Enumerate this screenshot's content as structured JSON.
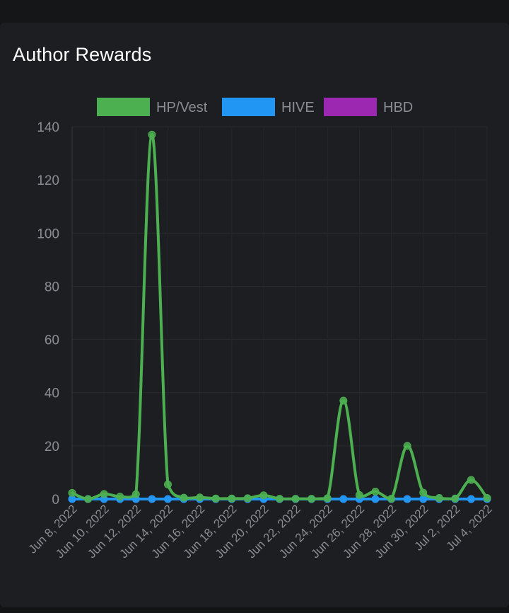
{
  "card": {
    "title": "Author Rewards"
  },
  "chart_data": {
    "type": "line",
    "title": "",
    "xlabel": "",
    "ylabel": "",
    "ylim": [
      0,
      140
    ],
    "yticks": [
      0,
      20,
      40,
      60,
      80,
      100,
      120,
      140
    ],
    "x": [
      "Jun 8, 2022",
      "Jun 9, 2022",
      "Jun 10, 2022",
      "Jun 11, 2022",
      "Jun 12, 2022",
      "Jun 13, 2022",
      "Jun 14, 2022",
      "Jun 15, 2022",
      "Jun 16, 2022",
      "Jun 17, 2022",
      "Jun 18, 2022",
      "Jun 19, 2022",
      "Jun 20, 2022",
      "Jun 21, 2022",
      "Jun 22, 2022",
      "Jun 23, 2022",
      "Jun 24, 2022",
      "Jun 25, 2022",
      "Jun 26, 2022",
      "Jun 27, 2022",
      "Jun 28, 2022",
      "Jun 29, 2022",
      "Jun 30, 2022",
      "Jul 1, 2022",
      "Jul 2, 2022",
      "Jul 3, 2022",
      "Jul 4, 2022"
    ],
    "x_tick_labels": [
      "Jun 8, 2022",
      "Jun 10, 2022",
      "Jun 12, 2022",
      "Jun 14, 2022",
      "Jun 16, 2022",
      "Jun 18, 2022",
      "Jun 20, 2022",
      "Jun 22, 2022",
      "Jun 24, 2022",
      "Jun 26, 2022",
      "Jun 28, 2022",
      "Jun 30, 2022",
      "Jul 2, 2022",
      "Jul 4, 2022"
    ],
    "legend_position": "top",
    "grid": true,
    "series": [
      {
        "name": "HP/Vest",
        "color": "#4caf50",
        "values": [
          2.3,
          0,
          1.9,
          0.9,
          1.8,
          137,
          5.5,
          0.5,
          0.6,
          0.2,
          0.2,
          0.3,
          1.4,
          0.1,
          0.1,
          0.1,
          0.3,
          37,
          1.5,
          2.8,
          0.1,
          20,
          2.4,
          0.4,
          0.2,
          7.2,
          0.4
        ]
      },
      {
        "name": "HIVE",
        "color": "#2196f3",
        "values": [
          0,
          0,
          0,
          0,
          0,
          0,
          0,
          0,
          0,
          0,
          0,
          0,
          0,
          0,
          0,
          0,
          0,
          0,
          0,
          0,
          0,
          0,
          0,
          0,
          0,
          0,
          0
        ]
      },
      {
        "name": "HBD",
        "color": "#9c27b0",
        "values": [
          0,
          0,
          0,
          0,
          0,
          0,
          0,
          0,
          0,
          0,
          0,
          0,
          0,
          0,
          0,
          0,
          0,
          0,
          0,
          0,
          0,
          0,
          0,
          0,
          0,
          0,
          0
        ]
      }
    ]
  }
}
